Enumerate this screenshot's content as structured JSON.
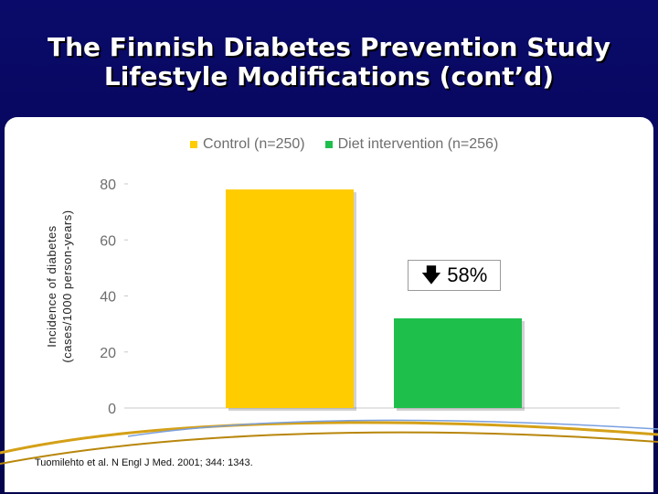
{
  "slide": {
    "title_line1": "The Finnish Diabetes Prevention Study",
    "title_line2": "Lifestyle Modifications (cont’d)",
    "citation": "Tuomilehto et al. N Engl J Med. 2001; 344: 1343.",
    "callout": {
      "arrow_icon": "arrow-down-icon",
      "text": "58%"
    },
    "colors": {
      "background": "#07075c",
      "control": "#ffcc00",
      "intervention": "#1fbf4c",
      "decor": "#d4a017"
    }
  },
  "chart_data": {
    "type": "bar",
    "title": "",
    "ylabel_line1": "Incidence of diabetes",
    "ylabel_line2": "(cases/1000 person-years)",
    "xlabel": "",
    "ylim": [
      0,
      80
    ],
    "yticks": [
      "0",
      "20",
      "40",
      "60",
      "80"
    ],
    "legend_position": "top",
    "series": [
      {
        "name": "Control (n=250)",
        "value": 78,
        "color": "#ffcc00"
      },
      {
        "name": "Diet intervention (n=256)",
        "value": 32,
        "color": "#1fbf4c"
      }
    ],
    "grid": false
  }
}
